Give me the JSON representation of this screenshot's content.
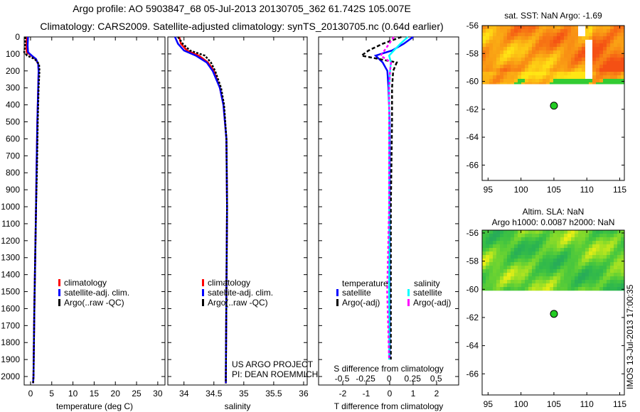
{
  "title_line1": "Argo profile: AO 5903847_68 05-Jul-2013 20130705_362 61.742S 105.007E",
  "title_line2": "Climatology: CARS2009. Satellite-adjusted climatology: synTS_20130705.nc (0.64d earlier)",
  "credit_line1": "US ARGO PROJECT",
  "credit_line2": "PI: DEAN ROEMMICH",
  "timestamp": "IMOS 13-Jul-2013 17:00:35",
  "colors": {
    "climatology": "#ff0000",
    "satellite": "#0000ff",
    "argo": "#000000",
    "sal_satellite": "#00ffff",
    "sal_argo": "#ff00ff"
  },
  "chart_data": [
    {
      "type": "line",
      "name": "temperature-profile",
      "xlabel": "temperature (deg C)",
      "ylabel": "",
      "xlim": [
        -1.5,
        31.7
      ],
      "ylim": [
        2050,
        0
      ],
      "xticks": [
        0,
        5,
        10,
        15,
        20,
        25,
        30
      ],
      "yticks": [
        0,
        100,
        200,
        300,
        400,
        500,
        600,
        700,
        800,
        900,
        1000,
        1100,
        1200,
        1300,
        1400,
        1500,
        1600,
        1700,
        1800,
        1900,
        2000
      ],
      "legend": [
        "climatology",
        "satellite-adj. clim.",
        "Argo(..raw -QC)"
      ],
      "depth": [
        0,
        50,
        90,
        110,
        130,
        160,
        200,
        300,
        500,
        800,
        1000,
        1300,
        1600,
        2000,
        2040
      ],
      "series": [
        {
          "name": "climatology",
          "values": [
            -0.9,
            -1.0,
            -0.9,
            0.2,
            1.2,
            1.8,
            1.9,
            1.8,
            1.6,
            1.4,
            1.3,
            1.1,
            0.9,
            0.7,
            0.6
          ]
        },
        {
          "name": "satellite-adj. clim.",
          "values": [
            -0.6,
            -0.7,
            -0.6,
            0.3,
            1.3,
            1.8,
            1.9,
            1.8,
            1.6,
            1.4,
            1.3,
            1.1,
            0.9,
            0.7,
            0.6
          ]
        },
        {
          "name": "Argo(..raw -QC)",
          "values": [
            -1.2,
            -1.3,
            -1.5,
            -0.8,
            1.0,
            2.0,
            2.1,
            1.9,
            1.7,
            1.5,
            1.3,
            1.1,
            0.9,
            0.7,
            0.6
          ]
        }
      ]
    },
    {
      "type": "line",
      "name": "salinity-profile",
      "xlabel": "salinity",
      "ylabel": "",
      "xlim": [
        33.73,
        36.06
      ],
      "ylim": [
        2050,
        0
      ],
      "xticks": [
        34,
        34.5,
        35,
        35.5,
        36
      ],
      "legend": [
        "climatology",
        "satellite-adj. clim.",
        "Argo(..raw -QC)"
      ],
      "depth": [
        0,
        40,
        80,
        110,
        150,
        200,
        300,
        400,
        600,
        1000,
        1500,
        2000,
        2040
      ],
      "series": [
        {
          "name": "climatology",
          "values": [
            33.92,
            33.95,
            34.05,
            34.25,
            34.4,
            34.5,
            34.6,
            34.66,
            34.71,
            34.72,
            34.71,
            34.7,
            34.7
          ]
        },
        {
          "name": "satellite-adj. clim.",
          "values": [
            33.85,
            33.9,
            34.0,
            34.2,
            34.38,
            34.48,
            34.6,
            34.66,
            34.71,
            34.72,
            34.71,
            34.7,
            34.7
          ]
        },
        {
          "name": "Argo(..raw -QC)",
          "values": [
            33.9,
            33.98,
            34.1,
            34.35,
            34.45,
            34.52,
            34.62,
            34.67,
            34.71,
            34.72,
            34.71,
            34.7,
            34.7
          ]
        }
      ]
    },
    {
      "type": "line",
      "name": "difference-profile",
      "xlabel": "T difference from climatology",
      "x2label": "S difference from climatology",
      "xlim": [
        -3.03,
        2.94
      ],
      "x2lim": [
        -0.75,
        0.74
      ],
      "ylim": [
        2050,
        0
      ],
      "xticks": [
        -2,
        -1,
        0,
        1,
        2
      ],
      "x2ticks": [
        -0.5,
        -0.25,
        0,
        0.25,
        0.5
      ],
      "legend_headers": [
        "temperature",
        "salinity"
      ],
      "legend": [
        "satellite",
        "Argo(-adj)",
        "satellite",
        "Argo(-adj)"
      ],
      "depth": [
        0,
        40,
        80,
        110,
        150,
        200,
        300,
        500,
        1000,
        1500,
        1900
      ],
      "series": [
        {
          "name": "temperature satellite",
          "values": [
            1.0,
            0.6,
            0.1,
            -0.6,
            -0.3,
            -0.1,
            -0.05,
            0,
            0,
            0,
            0
          ]
        },
        {
          "name": "temperature Argo(-adj)",
          "values": [
            0.5,
            -0.3,
            -0.9,
            -1.2,
            0.3,
            0.15,
            0.1,
            0.1,
            0.05,
            0.05,
            0.05
          ]
        },
        {
          "name": "salinity satellite",
          "values": [
            0.2,
            0.12,
            0.05,
            0.0,
            0.02,
            0.01,
            0.0,
            0.0,
            0.0,
            0.0,
            0.0
          ]
        },
        {
          "name": "salinity Argo(-adj)",
          "values": [
            0.05,
            0.0,
            -0.05,
            -0.09,
            0.02,
            0.01,
            0.0,
            0.0,
            0.0,
            -0.02,
            0.0
          ]
        }
      ]
    },
    {
      "type": "heatmap",
      "name": "sst-map",
      "title": "sat. SST: NaN Argo: -1.69",
      "xlim": [
        94.1,
        115.7
      ],
      "ylim": [
        -67.1,
        -56
      ],
      "xticks": [
        95,
        100,
        105,
        110,
        115
      ],
      "yticks": [
        -56,
        -58,
        -60,
        -62,
        -64,
        -66
      ],
      "data_extent_lat": [
        -60.2,
        -56
      ],
      "marker": {
        "lon": 105.007,
        "lat": -61.742
      }
    },
    {
      "type": "heatmap",
      "name": "sla-map",
      "title_line1": "Altim. SLA: NaN",
      "title_line2": "Argo h1000: 0.0087 h2000: NaN",
      "xlim": [
        94.1,
        115.7
      ],
      "ylim": [
        -67.5,
        -55.8
      ],
      "xticks": [
        95,
        100,
        105,
        110,
        115
      ],
      "yticks": [
        -56,
        -58,
        -60,
        -62,
        -64,
        -66
      ],
      "data_extent_lat": [
        -60.1,
        -55.8
      ],
      "marker": {
        "lon": 105.007,
        "lat": -61.742
      }
    }
  ]
}
